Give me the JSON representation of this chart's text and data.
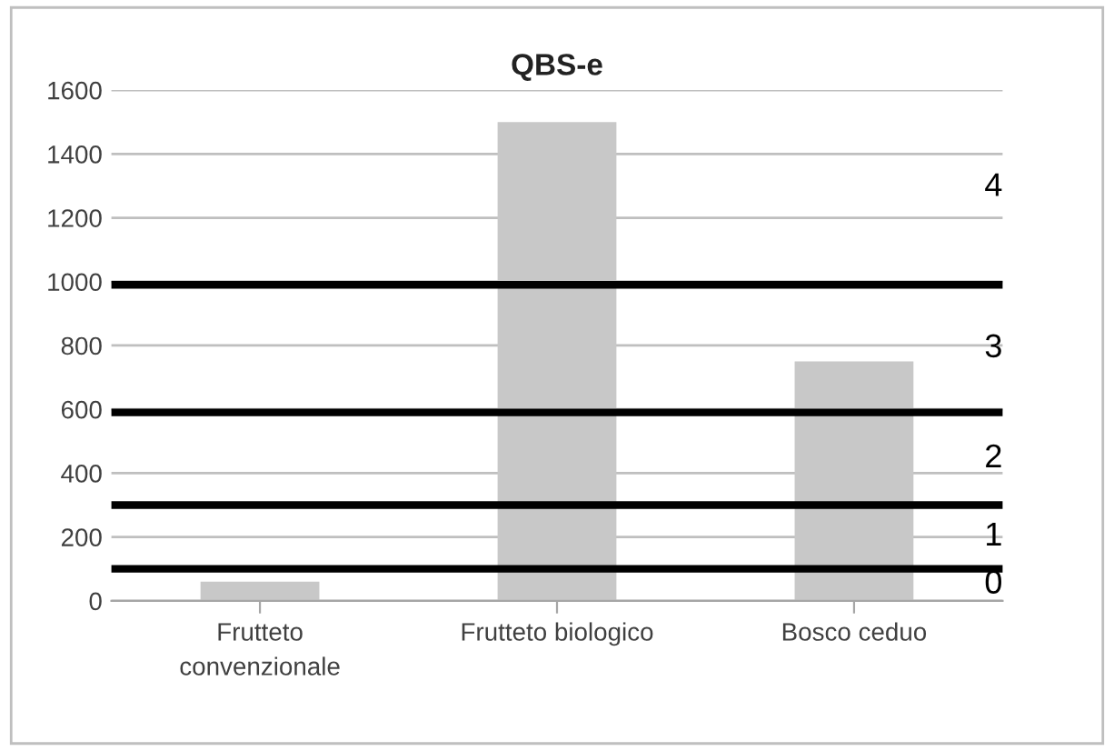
{
  "chart_data": {
    "type": "bar",
    "title": "QBS-e",
    "categories": [
      "Frutteto\nconvenzionale",
      "Frutteto biologico",
      "Bosco ceduo"
    ],
    "values": [
      60,
      1500,
      750
    ],
    "color": "#c8c8c8",
    "ylim": [
      0,
      1600
    ],
    "yticks": [
      0,
      200,
      400,
      600,
      800,
      1000,
      1200,
      1400,
      1600
    ],
    "grid": "y",
    "ref_lines": [
      {
        "axis": "y",
        "value": 100,
        "color": "#000000"
      },
      {
        "axis": "y",
        "value": 300,
        "color": "#000000"
      },
      {
        "axis": "y",
        "value": 590,
        "color": "#000000"
      },
      {
        "axis": "y",
        "value": 990,
        "color": "#000000"
      }
    ],
    "annotations": [
      "0",
      "1",
      "2",
      "3",
      "4"
    ]
  }
}
